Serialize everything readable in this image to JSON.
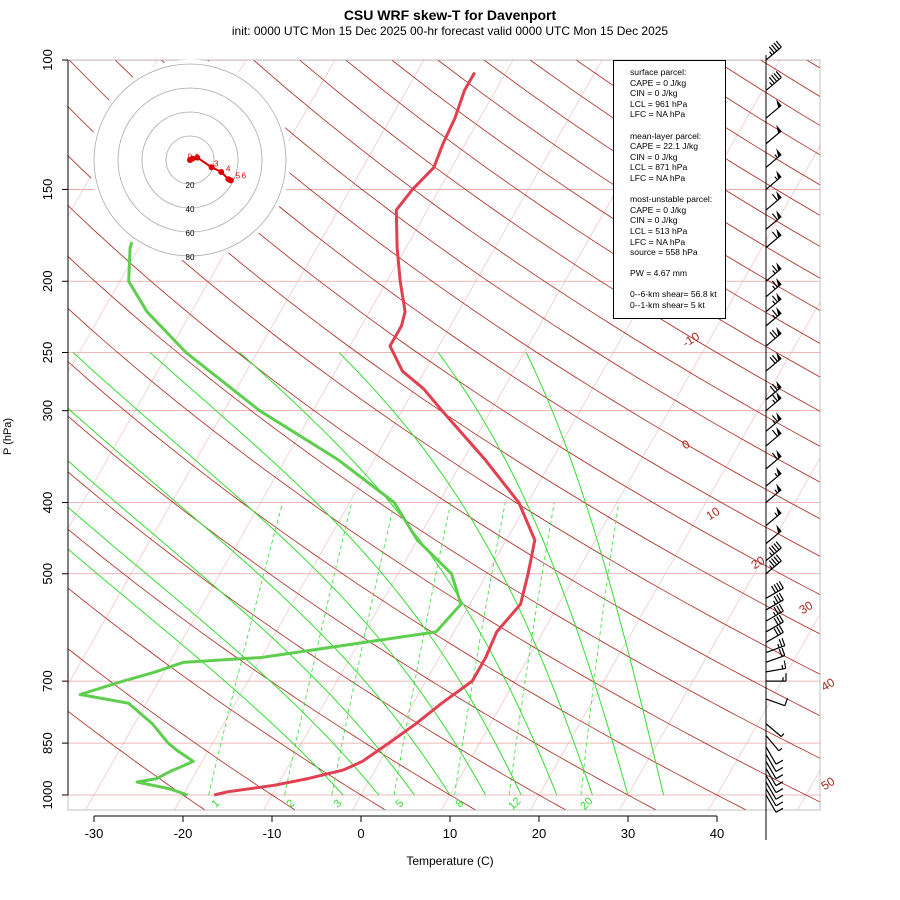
{
  "header": {
    "title": "CSU WRF skew-T for Davenport",
    "subtitle": "init: 0000 UTC Mon 15 Dec 2025    00-hr forecast valid 0000 UTC Mon 15 Dec 2025"
  },
  "legend": {
    "surface_title": "surface parcel:",
    "surface_cape": "CAPE = 0 J/kg",
    "surface_cin": "CIN = 0 J/kg",
    "surface_lcl": "LCL = 961 hPa",
    "surface_lfc": "LFC = NA hPa",
    "mean_title": "mean-layer parcel:",
    "mean_cape": "CAPE = 22.1 J/kg",
    "mean_cin": "CIN = 0 J/kg",
    "mean_lcl": "LCL = 871 hPa",
    "mean_lfc": "LFC = NA hPa",
    "mu_title": "most-unstable parcel:",
    "mu_cape": "CAPE = 0 J/kg",
    "mu_cin": "CIN = 0 J/kg",
    "mu_lcl": "LCL = 513 hPa",
    "mu_lfc": "LFC = NA hPa",
    "mu_source": "source = 558 hPa",
    "pw": "PW =  4.67 mm",
    "shear_06": "0--6-km shear= 56.8 kt",
    "shear_01": "0--1-km shear= 5 kt"
  },
  "colors": {
    "temperature": "#e0404f",
    "dewpoint": "#5fce4f",
    "isotherm": "#a9261c",
    "mixing_ratio": "#33dd33",
    "grid": "#f0b8b8",
    "hodograph": "#dd0000"
  },
  "chart_data": {
    "type": "skew-t",
    "title": "CSU WRF skew-T for Davenport",
    "xlabel": "Temperature (C)",
    "ylabel": "P (hPa)",
    "xlim": [
      -33,
      52
    ],
    "ylim": [
      1000,
      100
    ],
    "x_ticks": [
      -30,
      -20,
      -10,
      0,
      10,
      20,
      30,
      40
    ],
    "p_ticks": [
      100,
      150,
      200,
      250,
      300,
      400,
      500,
      700,
      850,
      1000
    ],
    "isotherm_labels": [
      -10,
      0,
      10,
      20,
      30,
      40,
      50
    ],
    "mixing_ratio_labels": [
      1,
      2,
      3,
      5,
      8,
      12,
      20
    ],
    "temperature_profile": [
      [
        1000,
        -16.5
      ],
      [
        990,
        -15.2
      ],
      [
        970,
        -10.4
      ],
      [
        950,
        -7.0
      ],
      [
        925,
        -3.6
      ],
      [
        900,
        -2.0
      ],
      [
        850,
        -0.2
      ],
      [
        800,
        1.6
      ],
      [
        750,
        3.2
      ],
      [
        700,
        5.2
      ],
      [
        650,
        5.2
      ],
      [
        600,
        4.8
      ],
      [
        550,
        5.7
      ],
      [
        500,
        4.6
      ],
      [
        450,
        3.2
      ],
      [
        400,
        -1.0
      ],
      [
        350,
        -7.5
      ],
      [
        300,
        -15.5
      ],
      [
        280,
        -19.0
      ],
      [
        265,
        -22.5
      ],
      [
        245,
        -25.5
      ],
      [
        230,
        -25.5
      ],
      [
        220,
        -26.0
      ],
      [
        200,
        -28.5
      ],
      [
        180,
        -31.0
      ],
      [
        160,
        -33.5
      ],
      [
        150,
        -33.0
      ],
      [
        140,
        -32.0
      ],
      [
        130,
        -32.5
      ],
      [
        120,
        -32.8
      ],
      [
        110,
        -33.5
      ],
      [
        104,
        -33.5
      ]
    ],
    "dewpoint_profile": [
      [
        1000,
        -19.5
      ],
      [
        980,
        -22.0
      ],
      [
        960,
        -26.0
      ],
      [
        950,
        -24.0
      ],
      [
        930,
        -23.0
      ],
      [
        900,
        -21.0
      ],
      [
        870,
        -23.5
      ],
      [
        850,
        -25.0
      ],
      [
        800,
        -28.0
      ],
      [
        750,
        -32.0
      ],
      [
        730,
        -38.0
      ],
      [
        700,
        -34.0
      ],
      [
        680,
        -31.0
      ],
      [
        660,
        -28.5
      ],
      [
        650,
        -20.0
      ],
      [
        600,
        -2.0
      ],
      [
        550,
        -1.0
      ],
      [
        500,
        -4.0
      ],
      [
        450,
        -10.0
      ],
      [
        400,
        -15.0
      ],
      [
        350,
        -24.0
      ],
      [
        300,
        -36.0
      ],
      [
        250,
        -48.0
      ],
      [
        220,
        -55.0
      ],
      [
        200,
        -59.0
      ],
      [
        180,
        -61.0
      ],
      [
        170,
        -61.5
      ]
    ],
    "mixing_ratio_lines": [
      [
        0.4,
        0.2,
        0.5,
        1000
      ],
      [
        1,
        1,
        2.5,
        1000
      ],
      [
        2,
        2,
        3,
        1000
      ],
      [
        3,
        3,
        5,
        1000
      ],
      [
        5,
        5,
        8,
        1000
      ],
      [
        8,
        8,
        12,
        1000
      ],
      [
        12,
        12,
        20,
        1000
      ],
      [
        20,
        20,
        30,
        1000
      ]
    ],
    "wind_barbs": [
      [
        100,
        45,
        230
      ],
      [
        110,
        45,
        230
      ],
      [
        120,
        50,
        230
      ],
      [
        130,
        50,
        230
      ],
      [
        140,
        55,
        230
      ],
      [
        150,
        55,
        230
      ],
      [
        160,
        60,
        230
      ],
      [
        170,
        60,
        230
      ],
      [
        180,
        60,
        230
      ],
      [
        200,
        65,
        230
      ],
      [
        210,
        65,
        230
      ],
      [
        220,
        65,
        230
      ],
      [
        230,
        65,
        230
      ],
      [
        245,
        70,
        230
      ],
      [
        265,
        70,
        230
      ],
      [
        290,
        70,
        230
      ],
      [
        300,
        65,
        230
      ],
      [
        320,
        65,
        230
      ],
      [
        335,
        60,
        230
      ],
      [
        360,
        60,
        230
      ],
      [
        380,
        55,
        230
      ],
      [
        400,
        55,
        230
      ],
      [
        430,
        55,
        230
      ],
      [
        455,
        50,
        230
      ],
      [
        480,
        45,
        230
      ],
      [
        500,
        45,
        230
      ],
      [
        540,
        40,
        240
      ],
      [
        560,
        35,
        240
      ],
      [
        580,
        35,
        240
      ],
      [
        600,
        30,
        240
      ],
      [
        620,
        30,
        240
      ],
      [
        640,
        25,
        250
      ],
      [
        660,
        20,
        250
      ],
      [
        680,
        15,
        260
      ],
      [
        700,
        15,
        270
      ],
      [
        740,
        10,
        290
      ],
      [
        800,
        5,
        310
      ],
      [
        830,
        5,
        320
      ],
      [
        860,
        10,
        330
      ],
      [
        880,
        10,
        330
      ],
      [
        900,
        10,
        330
      ],
      [
        920,
        10,
        330
      ],
      [
        940,
        10,
        330
      ],
      [
        960,
        10,
        330
      ],
      [
        980,
        10,
        330
      ],
      [
        1000,
        10,
        330
      ]
    ],
    "hodograph": {
      "range_rings": [
        20,
        40,
        60,
        80
      ],
      "points": [
        [
          0,
          0
        ],
        [
          2,
          1
        ],
        [
          6,
          2
        ],
        [
          18,
          -6
        ],
        [
          26,
          -10
        ],
        [
          32,
          -16
        ],
        [
          34,
          -17
        ]
      ],
      "labels": [
        "0",
        "1",
        "3",
        "4",
        "5",
        "6"
      ]
    }
  }
}
